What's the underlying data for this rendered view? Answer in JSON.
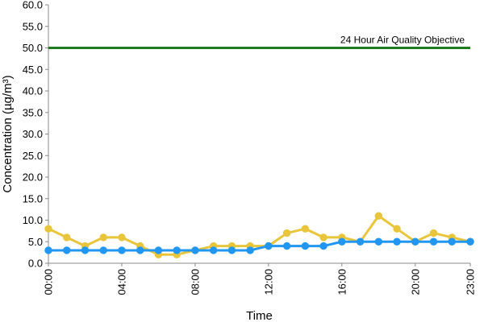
{
  "chart_data": {
    "type": "line",
    "xlabel": "Time",
    "ylabel": "Concentration (µg/m³)",
    "ylim": [
      0,
      60
    ],
    "yticks": [
      "0.0",
      "5.0",
      "10.0",
      "15.0",
      "20.0",
      "25.0",
      "30.0",
      "35.0",
      "40.0",
      "45.0",
      "50.0",
      "55.0",
      "60.0"
    ],
    "x": [
      0,
      1,
      2,
      3,
      4,
      5,
      6,
      7,
      8,
      9,
      10,
      11,
      12,
      13,
      14,
      15,
      16,
      17,
      18,
      19,
      20,
      21,
      22,
      23
    ],
    "xticks": [
      {
        "value": 0,
        "label": "00:00"
      },
      {
        "value": 4,
        "label": "04:00"
      },
      {
        "value": 8,
        "label": "08:00"
      },
      {
        "value": 12,
        "label": "12:00"
      },
      {
        "value": 16,
        "label": "16:00"
      },
      {
        "value": 20,
        "label": "20:00"
      },
      {
        "value": 23,
        "label": "23:00"
      }
    ],
    "grid": false,
    "series": [
      {
        "color": "#e8c53a",
        "marker_fill": "#e8c53a",
        "values": [
          8,
          6,
          4,
          6,
          6,
          4,
          2,
          2,
          3,
          4,
          4,
          4,
          4,
          7,
          8,
          6,
          6,
          5,
          11,
          8,
          5,
          7,
          6,
          5
        ]
      },
      {
        "color": "#2196f3",
        "marker_fill": "#2196f3",
        "values": [
          3,
          3,
          3,
          3,
          3,
          3,
          3,
          3,
          3,
          3,
          3,
          3,
          4,
          4,
          4,
          4,
          5,
          5,
          5,
          5,
          5,
          5,
          5,
          5
        ]
      }
    ],
    "objective": {
      "value": 50,
      "label": "24 Hour Air Quality Objective",
      "color": "#1e7b1e"
    }
  }
}
